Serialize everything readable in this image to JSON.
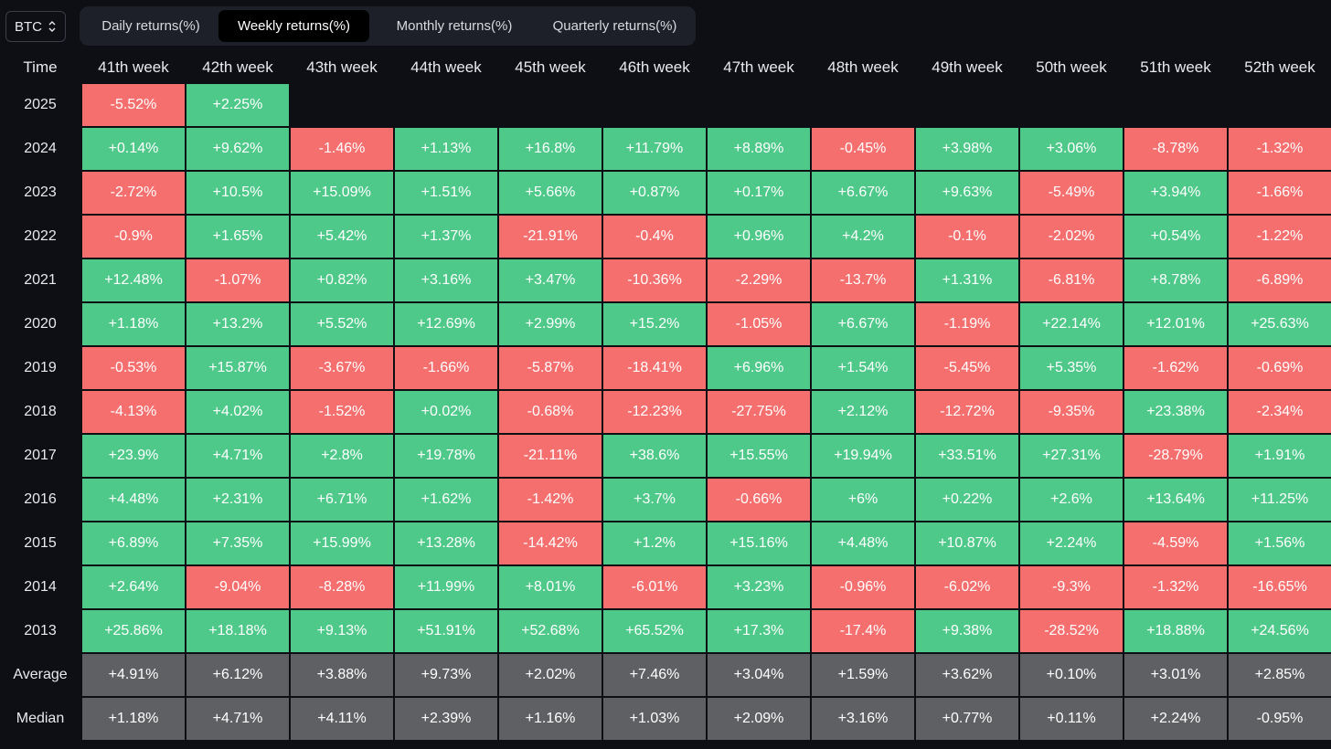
{
  "asset_selector": {
    "value": "BTC"
  },
  "tabs": [
    {
      "label": "Daily returns(%)",
      "active": false
    },
    {
      "label": "Weekly returns(%)",
      "active": true
    },
    {
      "label": "Monthly returns(%)",
      "active": false
    },
    {
      "label": "Quarterly returns(%)",
      "active": false
    }
  ],
  "colors": {
    "positive": "#4ec98a",
    "negative": "#f66f6f",
    "stat": "#5f6063",
    "background": "#0d0f15"
  },
  "table": {
    "corner_label": "Time",
    "columns": [
      "41th week",
      "42th week",
      "43th week",
      "44th week",
      "45th week",
      "46th week",
      "47th week",
      "48th week",
      "49th week",
      "50th week",
      "51th week",
      "52th week"
    ],
    "rows": [
      {
        "label": "2025",
        "values": [
          "-5.52%",
          "+2.25%",
          "",
          "",
          "",
          "",
          "",
          "",
          "",
          "",
          "",
          ""
        ]
      },
      {
        "label": "2024",
        "values": [
          "+0.14%",
          "+9.62%",
          "-1.46%",
          "+1.13%",
          "+16.8%",
          "+11.79%",
          "+8.89%",
          "-0.45%",
          "+3.98%",
          "+3.06%",
          "-8.78%",
          "-1.32%"
        ]
      },
      {
        "label": "2023",
        "values": [
          "-2.72%",
          "+10.5%",
          "+15.09%",
          "+1.51%",
          "+5.66%",
          "+0.87%",
          "+0.17%",
          "+6.67%",
          "+9.63%",
          "-5.49%",
          "+3.94%",
          "-1.66%"
        ]
      },
      {
        "label": "2022",
        "values": [
          "-0.9%",
          "+1.65%",
          "+5.42%",
          "+1.37%",
          "-21.91%",
          "-0.4%",
          "+0.96%",
          "+4.2%",
          "-0.1%",
          "-2.02%",
          "+0.54%",
          "-1.22%"
        ]
      },
      {
        "label": "2021",
        "values": [
          "+12.48%",
          "-1.07%",
          "+0.82%",
          "+3.16%",
          "+3.47%",
          "-10.36%",
          "-2.29%",
          "-13.7%",
          "+1.31%",
          "-6.81%",
          "+8.78%",
          "-6.89%"
        ]
      },
      {
        "label": "2020",
        "values": [
          "+1.18%",
          "+13.2%",
          "+5.52%",
          "+12.69%",
          "+2.99%",
          "+15.2%",
          "-1.05%",
          "+6.67%",
          "-1.19%",
          "+22.14%",
          "+12.01%",
          "+25.63%"
        ]
      },
      {
        "label": "2019",
        "values": [
          "-0.53%",
          "+15.87%",
          "-3.67%",
          "-1.66%",
          "-5.87%",
          "-18.41%",
          "+6.96%",
          "+1.54%",
          "-5.45%",
          "+5.35%",
          "-1.62%",
          "-0.69%"
        ]
      },
      {
        "label": "2018",
        "values": [
          "-4.13%",
          "+4.02%",
          "-1.52%",
          "+0.02%",
          "-0.68%",
          "-12.23%",
          "-27.75%",
          "+2.12%",
          "-12.72%",
          "-9.35%",
          "+23.38%",
          "-2.34%"
        ]
      },
      {
        "label": "2017",
        "values": [
          "+23.9%",
          "+4.71%",
          "+2.8%",
          "+19.78%",
          "-21.11%",
          "+38.6%",
          "+15.55%",
          "+19.94%",
          "+33.51%",
          "+27.31%",
          "-28.79%",
          "+1.91%"
        ]
      },
      {
        "label": "2016",
        "values": [
          "+4.48%",
          "+2.31%",
          "+6.71%",
          "+1.62%",
          "-1.42%",
          "+3.7%",
          "-0.66%",
          "+6%",
          "+0.22%",
          "+2.6%",
          "+13.64%",
          "+11.25%"
        ]
      },
      {
        "label": "2015",
        "values": [
          "+6.89%",
          "+7.35%",
          "+15.99%",
          "+13.28%",
          "-14.42%",
          "+1.2%",
          "+15.16%",
          "+4.48%",
          "+10.87%",
          "+2.24%",
          "-4.59%",
          "+1.56%"
        ]
      },
      {
        "label": "2014",
        "values": [
          "+2.64%",
          "-9.04%",
          "-8.28%",
          "+11.99%",
          "+8.01%",
          "-6.01%",
          "+3.23%",
          "-0.96%",
          "-6.02%",
          "-9.3%",
          "-1.32%",
          "-16.65%"
        ]
      },
      {
        "label": "2013",
        "values": [
          "+25.86%",
          "+18.18%",
          "+9.13%",
          "+51.91%",
          "+52.68%",
          "+65.52%",
          "+17.3%",
          "-17.4%",
          "+9.38%",
          "-28.52%",
          "+18.88%",
          "+24.56%"
        ]
      }
    ],
    "summary_rows": [
      {
        "label": "Average",
        "values": [
          "+4.91%",
          "+6.12%",
          "+3.88%",
          "+9.73%",
          "+2.02%",
          "+7.46%",
          "+3.04%",
          "+1.59%",
          "+3.62%",
          "+0.10%",
          "+3.01%",
          "+2.85%"
        ]
      },
      {
        "label": "Median",
        "values": [
          "+1.18%",
          "+4.71%",
          "+4.11%",
          "+2.39%",
          "+1.16%",
          "+1.03%",
          "+2.09%",
          "+3.16%",
          "+0.77%",
          "+0.11%",
          "+2.24%",
          "-0.95%"
        ]
      }
    ]
  }
}
